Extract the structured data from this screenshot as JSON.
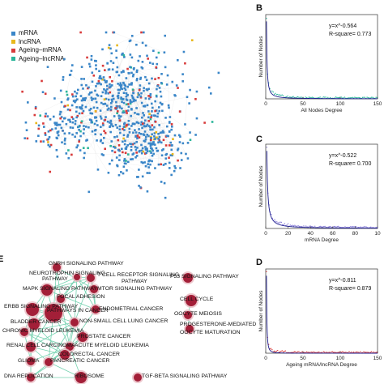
{
  "panels": {
    "a": {
      "legend": [
        {
          "label": "mRNA",
          "color": "#3a86c8"
        },
        {
          "label": "lncRNA",
          "color": "#e8b81c"
        },
        {
          "label": "Ageing–mRNA",
          "color": "#d83a3a"
        },
        {
          "label": "Ageing–lncRNA",
          "color": "#2bb59a"
        }
      ]
    },
    "b": {
      "letter": "B"
    },
    "c": {
      "letter": "C"
    },
    "d": {
      "letter": "D"
    },
    "e": {
      "letter": "E"
    }
  },
  "chart_data": [
    {
      "type": "scatter",
      "panel": "B",
      "xlabel": "All Nodes Degree",
      "ylabel": "Number of Nodes",
      "xticks": [
        "0",
        "50",
        "100",
        "150"
      ],
      "xlim": [
        0,
        150
      ],
      "fit_label": "y=x^-0.564",
      "r2_label": "R-square= 0.773",
      "exponent": -0.564,
      "point_color": "#2bb59a"
    },
    {
      "type": "scatter",
      "panel": "C",
      "xlabel": "mRNA Degree",
      "ylabel": "Number of Nodes",
      "xticks": [
        "0",
        "20",
        "40",
        "60",
        "80",
        "10"
      ],
      "xlim": [
        0,
        100
      ],
      "fit_label": "y=x^-0.522",
      "r2_label": "R-square= 0.700",
      "exponent": -0.522,
      "point_color": "#8a7fd8"
    },
    {
      "type": "scatter",
      "panel": "D",
      "xlabel": "Ageing mRNA/lncRNA Degree",
      "ylabel": "Number of Nodes",
      "xticks": [
        "0",
        "50",
        "100",
        "150"
      ],
      "xlim": [
        0,
        150
      ],
      "fit_label": "y=x^-0.811",
      "r2_label": "R-square= 0.879",
      "exponent": -0.811,
      "point_color": "#d83a3a"
    }
  ],
  "pathways": [
    "GNRH SIGNALING PATHWAY",
    "NEUROTROPHIN SIGNALING",
    "PATHWAY",
    "T CELL RECEPTOR SIGNALING",
    "PATHWAY",
    "MAPK SIGNALING PATHWAY",
    "MTOR SIGNALING PATHWAY",
    "FOCAL ADHESION",
    "ERBB SIGNALING PATHWAY",
    "PATHWAYS IN CANCER",
    "ENDOMETRIAL CANCER",
    "BLADDER CANCER",
    "NON-SMALL CELL LUNG CANCER",
    "CHRONIC MYELOID LEUKEMIA",
    "PROSTATE CANCER",
    "RENAL CELL CARCINOMA",
    "ACUTE MYELOID LEUKEMIA",
    "COLORECTAL CANCER",
    "GLIOMA",
    "PANCREATIC CANCER",
    "DNA REPLICATION",
    "RIBOSOME",
    "TGF-BETA SIGNALING PATHWAY",
    "P53 SIGNALING PATHWAY",
    "CELL CYCLE",
    "OOCYTE MEIOSIS",
    "PROGESTERONE-MEDIATED",
    "OOCYTE MATURATION"
  ]
}
